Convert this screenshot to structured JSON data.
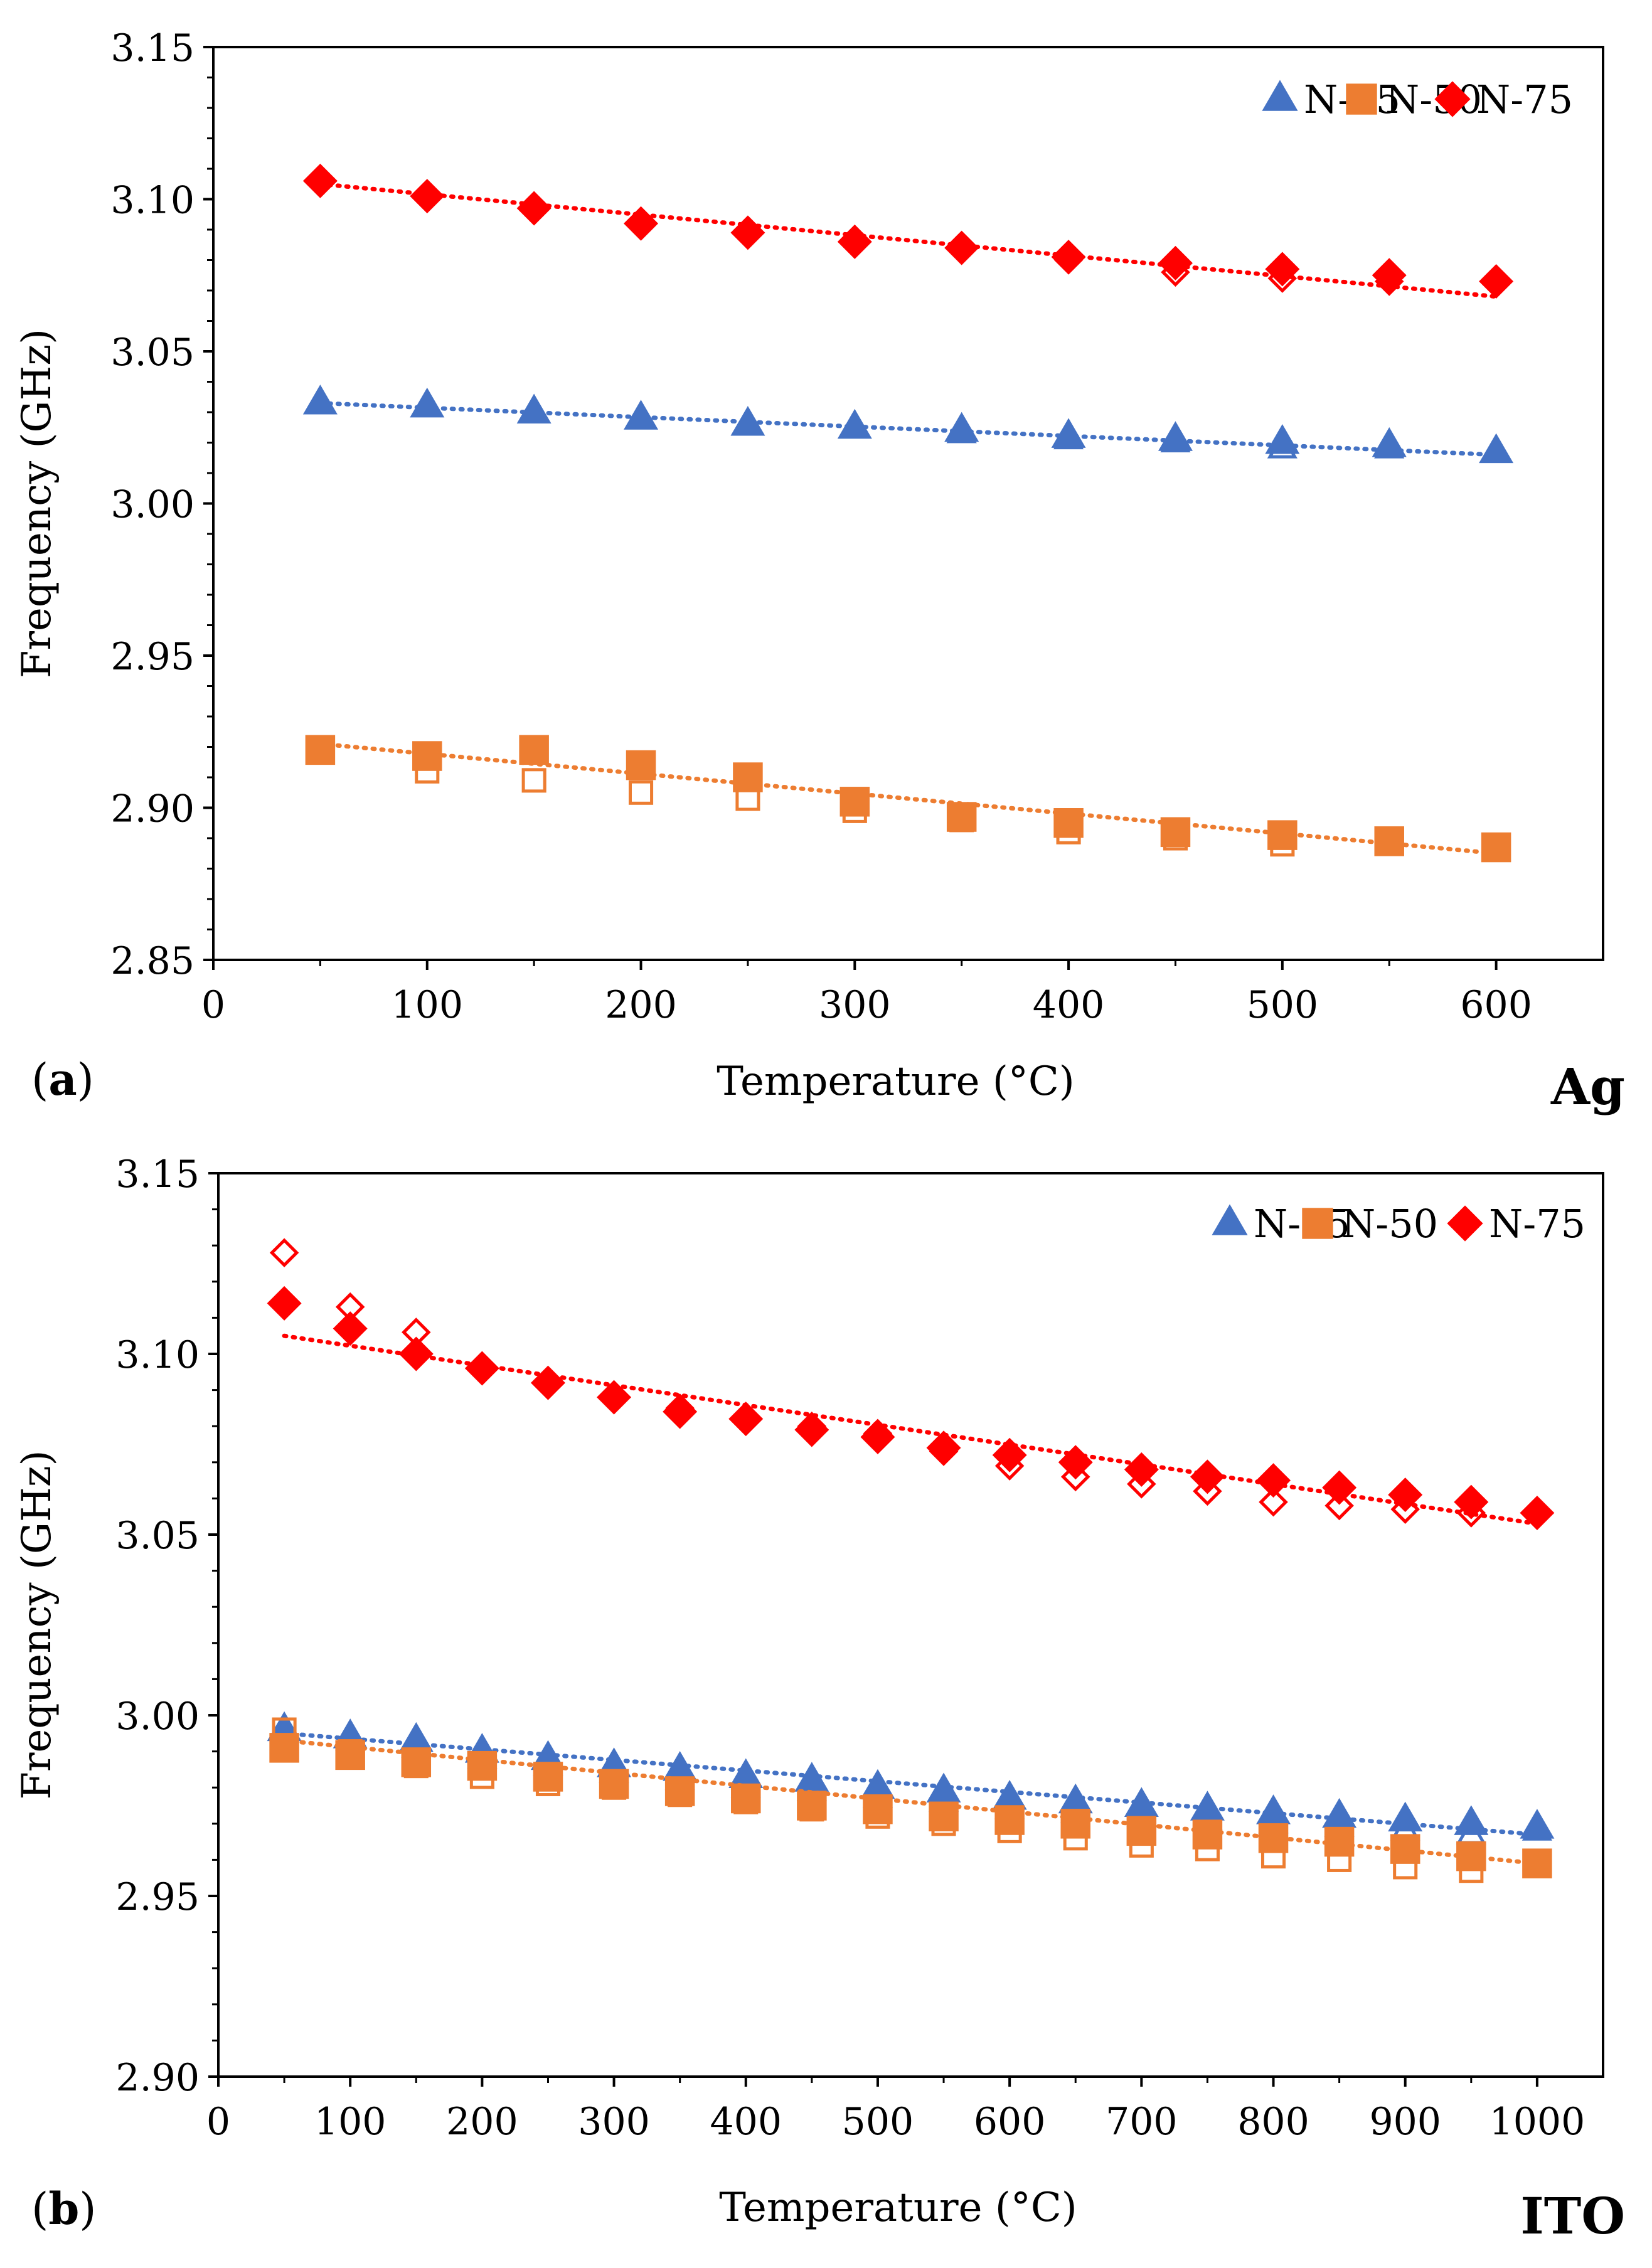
{
  "chart_data": [
    {
      "type": "scatter",
      "panel_label": "a",
      "material_label": "Ag",
      "xlabel": "Temperature (°C)",
      "ylabel": "Frequency (GHz)",
      "xlim": [
        0,
        650
      ],
      "ylim": [
        2.85,
        3.15
      ],
      "x_ticks": [
        0,
        100,
        200,
        300,
        400,
        500,
        600
      ],
      "y_ticks": [
        2.85,
        2.9,
        2.95,
        3.0,
        3.05,
        3.1,
        3.15
      ],
      "grid": false,
      "legend_position": "top-right",
      "legend": [
        "N-35",
        "N-50",
        "N-75"
      ],
      "series": [
        {
          "name": "N-35",
          "marker": "triangle",
          "color": "#4472C4",
          "x": [
            50,
            100,
            150,
            200,
            250,
            300,
            350,
            400,
            450,
            500,
            550,
            600
          ],
          "filled": [
            3.033,
            3.032,
            3.03,
            3.028,
            3.026,
            3.025,
            3.024,
            3.022,
            3.021,
            3.02,
            3.019,
            3.017
          ],
          "open": [
            3.033,
            3.032,
            3.03,
            3.028,
            3.026,
            3.025,
            3.023,
            3.021,
            3.02,
            3.018,
            3.018,
            3.017
          ],
          "trend": [
            3.033,
            3.016
          ]
        },
        {
          "name": "N-50",
          "marker": "square",
          "color": "#ED7D31",
          "x": [
            50,
            100,
            150,
            200,
            250,
            300,
            350,
            400,
            450,
            500,
            550,
            600
          ],
          "filled": [
            2.919,
            2.917,
            2.919,
            2.914,
            2.91,
            2.902,
            2.897,
            2.895,
            2.892,
            2.891,
            2.889,
            2.887
          ],
          "open": [
            2.919,
            2.912,
            2.909,
            2.905,
            2.903,
            2.899,
            2.896,
            2.892,
            2.89,
            2.888,
            2.889,
            2.887
          ],
          "trend": [
            2.921,
            2.885
          ]
        },
        {
          "name": "N-75",
          "marker": "diamond",
          "color": "#FF0000",
          "x": [
            50,
            100,
            150,
            200,
            250,
            300,
            350,
            400,
            450,
            500,
            550,
            600
          ],
          "filled": [
            3.106,
            3.101,
            3.097,
            3.092,
            3.089,
            3.086,
            3.084,
            3.081,
            3.079,
            3.077,
            3.075,
            3.073
          ],
          "open": [
            3.106,
            3.101,
            3.097,
            3.092,
            3.089,
            3.086,
            3.084,
            3.08,
            3.076,
            3.074,
            3.073,
            3.073
          ],
          "trend": [
            3.105,
            3.068
          ]
        }
      ]
    },
    {
      "type": "scatter",
      "panel_label": "b",
      "material_label": "ITO",
      "xlabel": "Temperature (°C)",
      "ylabel": "Frequency (GHz)",
      "xlim": [
        0,
        1050
      ],
      "ylim": [
        2.9,
        3.15
      ],
      "x_ticks": [
        0,
        100,
        200,
        300,
        400,
        500,
        600,
        700,
        800,
        900,
        1000
      ],
      "y_ticks": [
        2.9,
        2.95,
        3.0,
        3.05,
        3.1,
        3.15
      ],
      "grid": false,
      "legend_position": "top-right",
      "legend": [
        "N-35",
        "N-50",
        "N-75"
      ],
      "series": [
        {
          "name": "N-35",
          "marker": "triangle",
          "color": "#4472C4",
          "x": [
            50,
            100,
            150,
            200,
            250,
            300,
            350,
            400,
            450,
            500,
            550,
            600,
            650,
            700,
            750,
            800,
            850,
            900,
            950,
            1000
          ],
          "filled": [
            2.996,
            2.994,
            2.993,
            2.99,
            2.988,
            2.986,
            2.985,
            2.983,
            2.982,
            2.98,
            2.979,
            2.977,
            2.976,
            2.975,
            2.974,
            2.973,
            2.972,
            2.971,
            2.97,
            2.969
          ],
          "open": [
            2.996,
            2.993,
            2.991,
            2.988,
            2.986,
            2.984,
            2.982,
            2.98,
            2.979,
            2.977,
            2.976,
            2.974,
            2.973,
            2.972,
            2.971,
            2.97,
            2.969,
            2.968,
            2.967,
            2.968
          ],
          "trend": [
            2.995,
            2.967
          ]
        },
        {
          "name": "N-50",
          "marker": "square",
          "color": "#ED7D31",
          "x": [
            50,
            100,
            150,
            200,
            250,
            300,
            350,
            400,
            450,
            500,
            550,
            600,
            650,
            700,
            750,
            800,
            850,
            900,
            950,
            1000
          ],
          "filled": [
            2.991,
            2.989,
            2.987,
            2.986,
            2.983,
            2.981,
            2.979,
            2.977,
            2.975,
            2.974,
            2.972,
            2.971,
            2.97,
            2.968,
            2.967,
            2.966,
            2.965,
            2.963,
            2.961,
            2.959
          ],
          "open": [
            2.996,
            2.99,
            2.986,
            2.983,
            2.981,
            2.98,
            2.978,
            2.976,
            2.974,
            2.972,
            2.97,
            2.968,
            2.966,
            2.964,
            2.963,
            2.961,
            2.96,
            2.958,
            2.957,
            2.959
          ],
          "trend": [
            2.993,
            2.959
          ]
        },
        {
          "name": "N-75",
          "marker": "diamond",
          "color": "#FF0000",
          "x": [
            50,
            100,
            150,
            200,
            250,
            300,
            350,
            400,
            450,
            500,
            550,
            600,
            650,
            700,
            750,
            800,
            850,
            900,
            950,
            1000
          ],
          "filled": [
            3.114,
            3.107,
            3.1,
            3.096,
            3.092,
            3.088,
            3.084,
            3.082,
            3.079,
            3.077,
            3.074,
            3.072,
            3.07,
            3.068,
            3.066,
            3.065,
            3.063,
            3.061,
            3.059,
            3.056
          ],
          "open": [
            3.128,
            3.113,
            3.106,
            3.096,
            3.092,
            3.088,
            3.085,
            3.082,
            3.08,
            3.078,
            3.073,
            3.069,
            3.066,
            3.064,
            3.062,
            3.059,
            3.058,
            3.057,
            3.056,
            3.056
          ],
          "trend": [
            3.105,
            3.053
          ]
        }
      ]
    }
  ]
}
